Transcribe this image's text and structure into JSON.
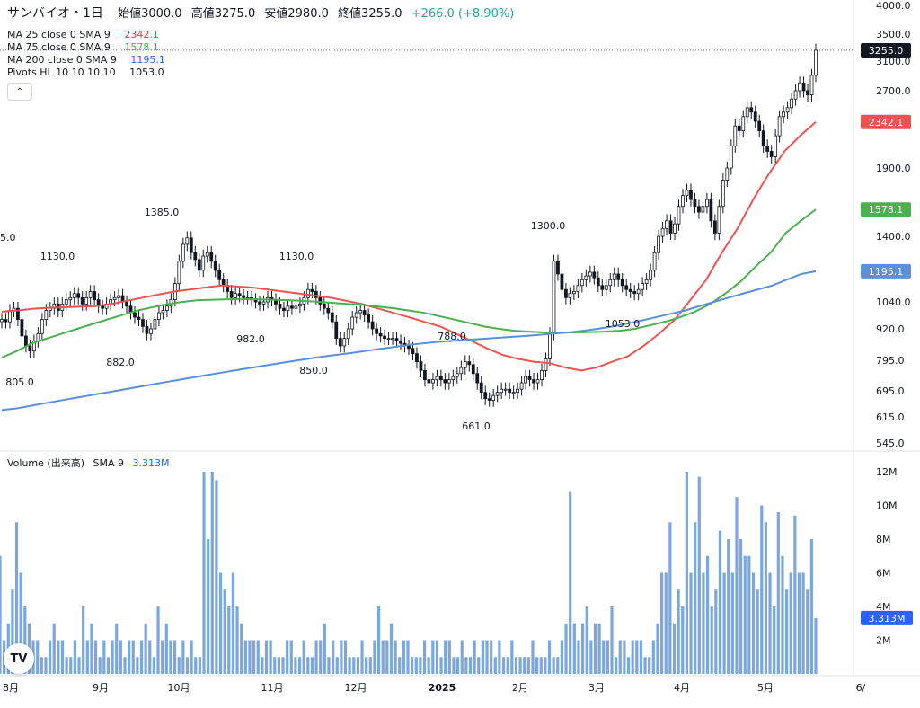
{
  "header": {
    "symbol": "サンバイオ・1日",
    "open_label": "始値",
    "open": "3000.0",
    "high_label": "高値",
    "high": "3275.0",
    "low_label": "安値",
    "low": "2980.0",
    "close_label": "終値",
    "close": "3255.0",
    "change": "+266.0 (+8.90%)"
  },
  "indicators": [
    {
      "label": "MA 25 close 0 SMA 9",
      "value": "2342.1",
      "color": "#f23645"
    },
    {
      "label": "MA 75 close 0 SMA 9",
      "value": "1578.1",
      "color": "#4caf50"
    },
    {
      "label": "MA 200 close 0 SMA 9",
      "value": "1195.1",
      "color": "#2962ff"
    },
    {
      "label": "Pivots HL 10 10 10 10",
      "value": "1053.0",
      "color": "#131722"
    }
  ],
  "volume_legend": {
    "label": "Volume (出来高)",
    "sma": "SMA 9",
    "value": "3.313M"
  },
  "icons": {
    "collapse": "chevron-up-icon",
    "logo": "tradingview-logo-icon"
  },
  "colors": {
    "up": "#ffffff",
    "down": "#131722",
    "ma25": "#ef5350",
    "ma75": "#4caf50",
    "ma200": "#5b8fd9",
    "volume": "#7ba7e0"
  },
  "chart_data": {
    "type": "candlestick",
    "price_axis": {
      "scale": "log",
      "ticks": [
        "4000.0",
        "3500.0",
        "3100.0",
        "2700.0",
        "1900.0",
        "1400.0",
        "1040.0",
        "920.0",
        "795.0",
        "695.0",
        "615.0",
        "545.0"
      ],
      "last_price": "3255.0"
    },
    "time_axis": [
      "8月",
      "9月",
      "10月",
      "11月",
      "12月",
      "2025",
      "2月",
      "3月",
      "4月",
      "5月",
      "6/"
    ],
    "ma_badges": [
      "2342.1",
      "1578.1",
      "1195.1"
    ],
    "pivots": [
      {
        "label": "5.0",
        "type": "high"
      },
      {
        "label": "1130.0",
        "type": "high"
      },
      {
        "label": "1385.0",
        "type": "high"
      },
      {
        "label": "1130.0",
        "type": "high"
      },
      {
        "label": "788.0",
        "type": "high"
      },
      {
        "label": "1300.0",
        "type": "high"
      },
      {
        "label": "805.0",
        "type": "low"
      },
      {
        "label": "882.0",
        "type": "low"
      },
      {
        "label": "982.0",
        "type": "low"
      },
      {
        "label": "850.0",
        "type": "low"
      },
      {
        "label": "661.0",
        "type": "low"
      },
      {
        "label": "1053.0",
        "type": "low"
      }
    ],
    "candles_close": [
      960,
      950,
      1000,
      1010,
      960,
      890,
      850,
      830,
      870,
      900,
      960,
      1000,
      1010,
      1030,
      1000,
      1030,
      1050,
      1060,
      1080,
      1060,
      1030,
      1060,
      1090,
      1050,
      1020,
      1010,
      1030,
      1050,
      1060,
      1070,
      1040,
      1020,
      990,
      970,
      960,
      930,
      900,
      920,
      960,
      990,
      1000,
      1020,
      1050,
      1130,
      1250,
      1350,
      1390,
      1300,
      1260,
      1200,
      1280,
      1300,
      1250,
      1200,
      1150,
      1120,
      1090,
      1060,
      1080,
      1070,
      1060,
      1060,
      1050,
      1040,
      1030,
      1040,
      1060,
      1050,
      1030,
      1010,
      1000,
      1020,
      1010,
      1020,
      1030,
      1060,
      1100,
      1090,
      1060,
      1030,
      1010,
      990,
      950,
      880,
      850,
      880,
      920,
      970,
      990,
      1000,
      980,
      950,
      920,
      900,
      890,
      880,
      880,
      880,
      870,
      860,
      850,
      840,
      820,
      790,
      760,
      730,
      720,
      730,
      740,
      730,
      720,
      730,
      740,
      750,
      770,
      790,
      780,
      750,
      720,
      690,
      670,
      665,
      680,
      690,
      700,
      700,
      690,
      690,
      700,
      720,
      740,
      730,
      720,
      730,
      760,
      800,
      900,
      1250,
      1180,
      1100,
      1060,
      1080,
      1090,
      1120,
      1150,
      1170,
      1190,
      1160,
      1120,
      1100,
      1120,
      1150,
      1180,
      1150,
      1120,
      1100,
      1090,
      1080,
      1100,
      1130,
      1150,
      1200,
      1300,
      1400,
      1450,
      1500,
      1420,
      1480,
      1600,
      1680,
      1720,
      1650,
      1600,
      1560,
      1600,
      1650,
      1500,
      1420,
      1600,
      1800,
      1900,
      2100,
      2300,
      2250,
      2400,
      2500,
      2450,
      2350,
      2250,
      2100,
      2050,
      2000,
      2200,
      2400,
      2450,
      2500,
      2600,
      2700,
      2800,
      2700,
      2650,
      2900,
      3255
    ],
    "ma25": [
      995,
      1000,
      1008,
      1012,
      1015,
      1018,
      1020,
      1030,
      1045,
      1060,
      1075,
      1090,
      1100,
      1110,
      1120,
      1115,
      1110,
      1100,
      1090,
      1080,
      1070,
      1060,
      1045,
      1030,
      1010,
      990,
      970,
      950,
      930,
      900,
      870,
      840,
      815,
      800,
      790,
      785,
      770,
      760,
      770,
      790,
      810,
      850,
      900,
      960,
      1050,
      1150,
      1300,
      1450,
      1650,
      1850,
      2050,
      2200,
      2342.1
    ],
    "ma75": [
      805,
      830,
      860,
      880,
      900,
      920,
      940,
      960,
      980,
      1000,
      1015,
      1030,
      1040,
      1048,
      1050,
      1052,
      1053,
      1052,
      1050,
      1048,
      1045,
      1040,
      1035,
      1030,
      1025,
      1018,
      1010,
      1000,
      990,
      975,
      960,
      945,
      930,
      920,
      912,
      908,
      905,
      904,
      905,
      906,
      908,
      912,
      920,
      935,
      950,
      970,
      995,
      1030,
      1080,
      1140,
      1220,
      1300,
      1420,
      1500,
      1578.1
    ],
    "ma200": [
      635,
      640,
      648,
      656,
      664,
      672,
      680,
      688,
      696,
      704,
      712,
      720,
      728,
      736,
      744,
      752,
      760,
      768,
      776,
      784,
      792,
      800,
      808,
      815,
      822,
      830,
      838,
      846,
      854,
      860,
      866,
      870,
      874,
      878,
      882,
      886,
      890,
      895,
      900,
      905,
      912,
      920,
      930,
      942,
      955,
      970,
      985,
      1000,
      1020,
      1040,
      1060,
      1080,
      1100,
      1120,
      1150,
      1180,
      1195.1
    ],
    "volume": {
      "axis_ticks": [
        "12M",
        "10M",
        "8M",
        "6M",
        "4M",
        "2M"
      ],
      "sma": "3.313M",
      "bars_m": [
        7,
        2,
        3,
        5,
        9,
        6,
        4,
        3,
        2,
        2,
        1,
        1,
        2,
        3,
        2,
        2,
        1,
        1,
        2,
        1,
        4,
        2,
        3,
        2,
        1,
        2,
        1,
        2,
        3,
        2,
        1,
        2,
        2,
        1,
        2,
        3,
        2,
        1,
        4,
        2,
        3,
        2,
        2,
        1,
        2,
        1,
        2,
        1,
        1,
        12,
        8,
        12,
        11.5,
        6,
        5,
        4,
        6,
        4,
        3,
        2,
        2,
        2,
        2,
        1,
        2,
        2,
        1,
        1,
        1,
        2,
        2,
        1,
        1,
        2,
        1,
        1,
        2,
        2,
        3,
        1,
        2,
        1,
        2,
        2,
        1,
        1,
        1,
        2,
        1,
        1,
        2,
        4,
        2,
        2,
        3,
        2,
        1,
        2,
        2,
        1,
        1,
        1,
        2,
        1,
        2,
        2,
        1,
        2,
        2,
        1,
        1,
        2,
        1,
        1,
        2,
        1,
        2,
        2,
        2,
        1,
        2,
        1,
        1,
        2,
        1,
        1,
        1,
        1,
        2,
        1,
        1,
        1,
        2,
        1,
        1,
        2,
        3,
        10.8,
        3,
        2,
        3,
        4,
        2,
        3,
        3,
        2,
        2,
        4,
        1,
        2,
        2,
        1,
        2,
        2,
        2,
        1,
        1,
        2,
        3,
        6,
        6,
        9,
        3,
        5,
        4,
        12,
        6,
        9,
        11.7,
        6,
        7,
        4,
        5,
        8.5,
        6,
        8,
        6,
        10.5,
        8,
        7,
        7,
        6,
        5,
        10,
        9,
        6,
        4,
        9.6,
        7,
        5,
        6,
        9.4,
        6,
        6,
        5,
        8,
        3.313
      ]
    }
  }
}
